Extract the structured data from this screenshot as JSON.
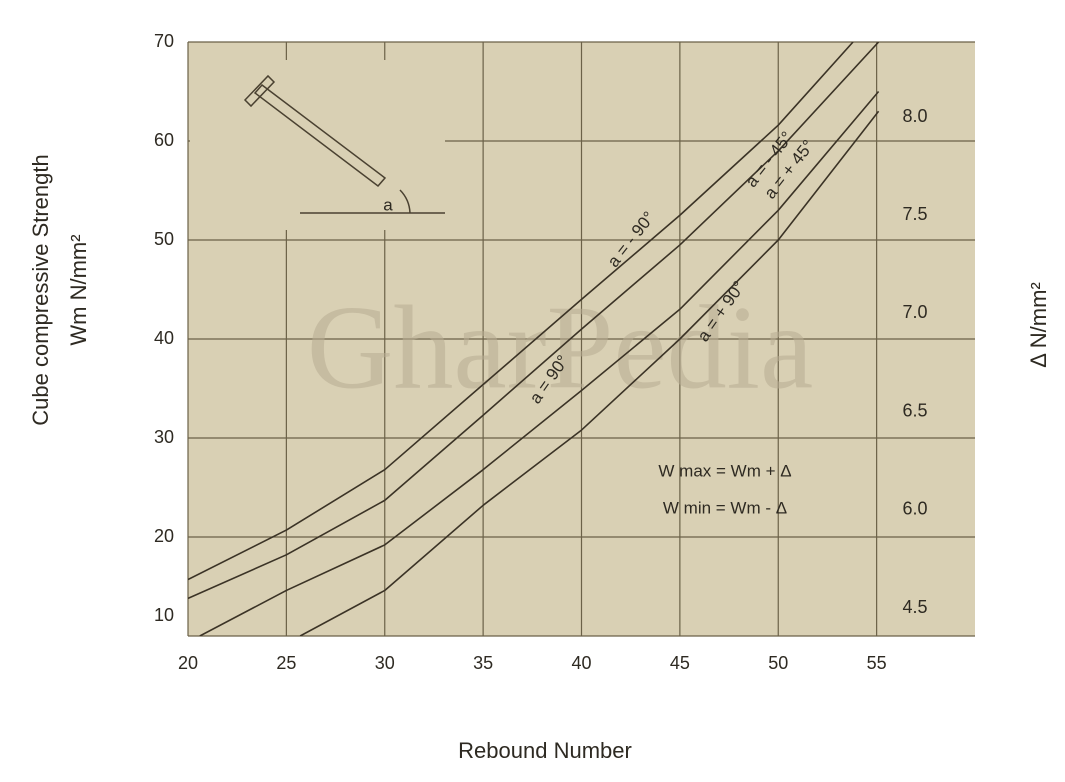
{
  "chart_data": {
    "type": "line",
    "x_label": "Rebound Number",
    "y_label": [
      "Cube compressive Strength",
      "Wm N/mm²"
    ],
    "y2_label": "Δ N/mm²",
    "y2_labels": [
      "8.0",
      "7.5",
      "7.0",
      "6.5",
      "6.0",
      "4.5"
    ],
    "xlim": [
      20,
      60
    ],
    "xticks": [
      20,
      25,
      30,
      35,
      40,
      45,
      50,
      55
    ],
    "ylim": [
      10,
      70
    ],
    "yticks": [
      10,
      20,
      30,
      40,
      50,
      60,
      70
    ],
    "grid": true,
    "background": "#d9d0b4",
    "line_color": "#3b3326",
    "series": [
      {
        "color": "#3b3326",
        "x": [
          20,
          25,
          30,
          35,
          40,
          45,
          50,
          53.8
        ],
        "values": [
          15.7,
          20.7,
          26.8,
          35.4,
          44,
          52.5,
          61.6,
          70
        ]
      },
      {
        "color": "#3b3326",
        "x": [
          20,
          25,
          30,
          35,
          40,
          45,
          50,
          55.1
        ],
        "values": [
          13.8,
          18.2,
          23.7,
          32.3,
          41,
          49.5,
          59,
          70
        ]
      },
      {
        "color": "#3b3326",
        "x": [
          20.6,
          25,
          30,
          35,
          40,
          45,
          50,
          55.1
        ],
        "values": [
          10,
          14.6,
          19.2,
          26.8,
          34.8,
          43,
          53,
          65
        ]
      },
      {
        "color": "#3b3326",
        "x": [
          25.7,
          30,
          35,
          40,
          45,
          50,
          55.1
        ],
        "values": [
          10,
          14.6,
          23.2,
          30.8,
          40,
          50,
          63
        ]
      }
    ],
    "annotations": [
      "a = - 90°",
      "a = - 45°",
      "a = + 45°",
      "a = + 90°",
      "a = 90°",
      "W max = Wm + Δ",
      "W min = Wm - Δ",
      "a"
    ],
    "watermark": "GharPedia"
  }
}
